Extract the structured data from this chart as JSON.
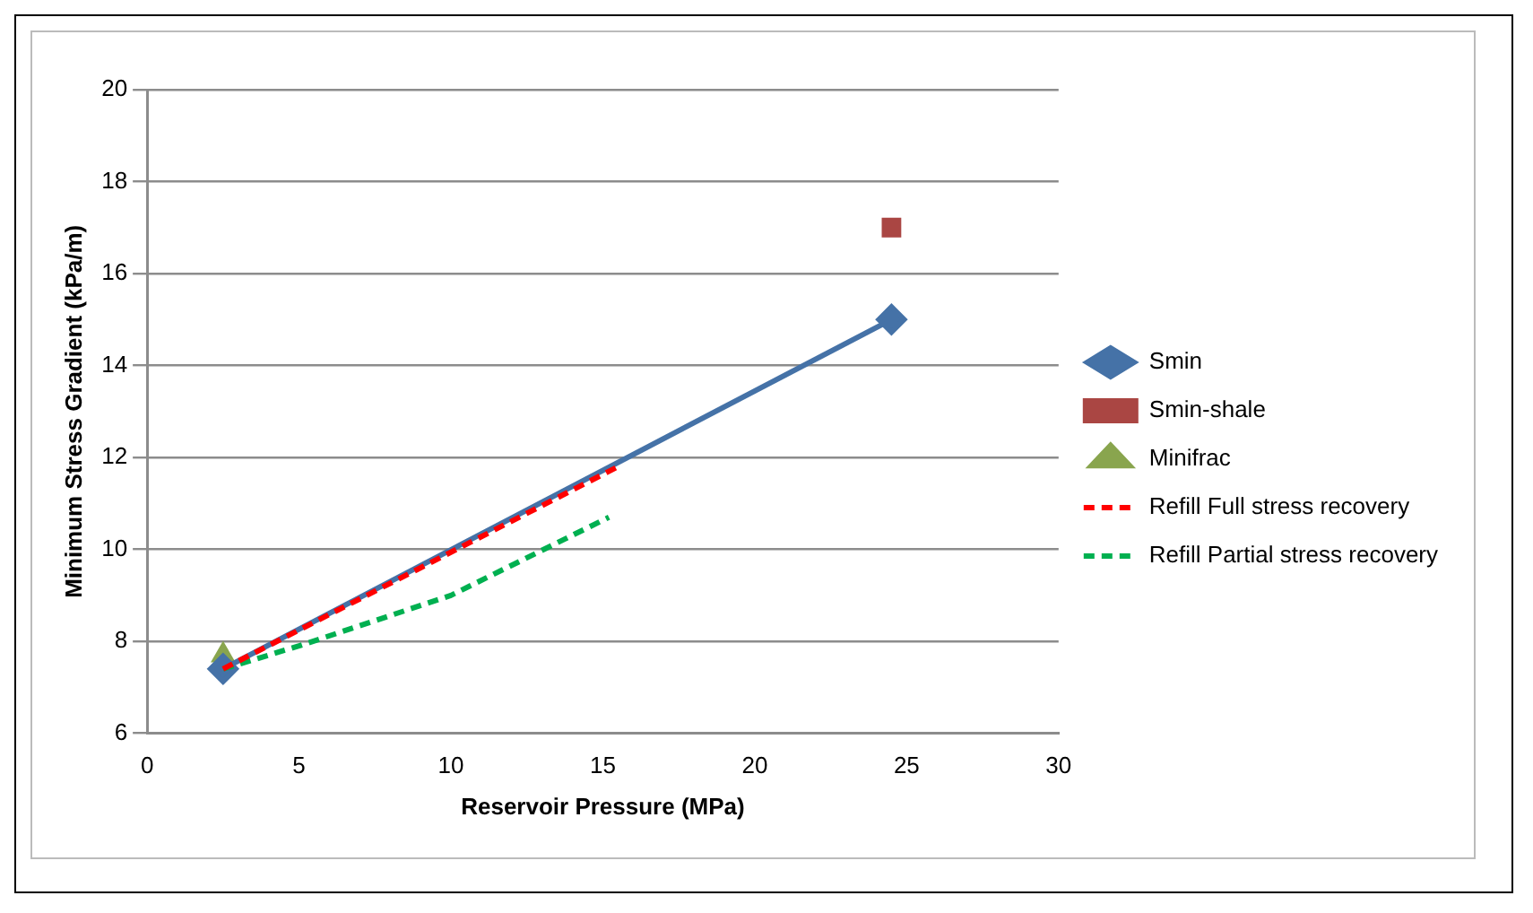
{
  "chart_data": {
    "type": "line",
    "xlabel": "Reservoir Pressure (MPa)",
    "ylabel": "Minimum Stress Gradient (kPa/m)",
    "xlim": [
      0,
      30
    ],
    "xticks": [
      0,
      5,
      10,
      15,
      20,
      25,
      30
    ],
    "ylim": [
      6,
      20
    ],
    "yticks": [
      6,
      8,
      10,
      12,
      14,
      16,
      18,
      20
    ],
    "grid": "y",
    "legend": "right",
    "series": [
      {
        "name": "Smin",
        "color": "#4572a7",
        "marker": "diamond",
        "line_style": "solid",
        "x": [
          2.5,
          24.5
        ],
        "values": [
          7.4,
          15.0
        ]
      },
      {
        "name": "Smin-shale",
        "type": "scatter",
        "color": "#aa4643",
        "marker": "square",
        "x": [
          24.5
        ],
        "values": [
          17.0
        ]
      },
      {
        "name": "Minifrac",
        "type": "scatter",
        "color": "#89a54e",
        "marker": "triangle",
        "x": [
          2.5
        ],
        "values": [
          7.7
        ]
      },
      {
        "name": "Refill Full stress recovery",
        "color": "#ff0000",
        "marker": "none",
        "line_style": "dashed",
        "x": [
          2.5,
          15.5
        ],
        "values": [
          7.4,
          11.8
        ]
      },
      {
        "name": "Refill Partial stress recovery",
        "color": "#00b050",
        "marker": "none",
        "line_style": "dashed",
        "x": [
          2.5,
          5,
          10,
          15.2
        ],
        "values": [
          7.4,
          7.9,
          9.0,
          10.7
        ]
      }
    ]
  }
}
